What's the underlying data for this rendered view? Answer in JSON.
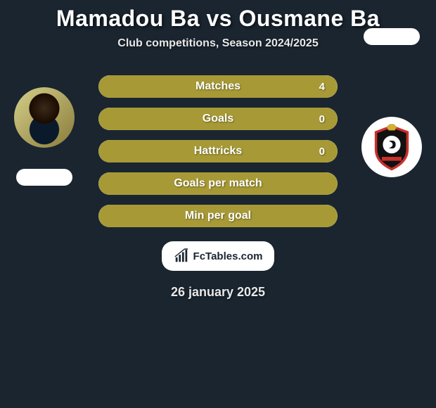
{
  "title": "Mamadou Ba vs Ousmane Ba",
  "subtitle": "Club competitions, Season 2024/2025",
  "stats": [
    {
      "label": "Matches",
      "value_left": "",
      "value_right": "4",
      "fill_pct": 100,
      "fill_color": "#a79a36"
    },
    {
      "label": "Goals",
      "value_left": "",
      "value_right": "0",
      "fill_pct": 100,
      "fill_color": "#a79a36"
    },
    {
      "label": "Hattricks",
      "value_left": "",
      "value_right": "0",
      "fill_pct": 100,
      "fill_color": "#a79a36"
    },
    {
      "label": "Goals per match",
      "value_left": "",
      "value_right": "",
      "fill_pct": 100,
      "fill_color": "#a79a36"
    },
    {
      "label": "Min per goal",
      "value_left": "",
      "value_right": "",
      "fill_pct": 100,
      "fill_color": "#a79a36"
    }
  ],
  "branding": {
    "site": "FcTables.com"
  },
  "date": "26 january 2025",
  "colors": {
    "background": "#1a2530",
    "accent": "#a79a36",
    "pill_bg": "#ffffff"
  },
  "players": {
    "left": {
      "name": "Mamadou Ba"
    },
    "right": {
      "name": "Ousmane Ba",
      "club": "Seraing"
    }
  }
}
